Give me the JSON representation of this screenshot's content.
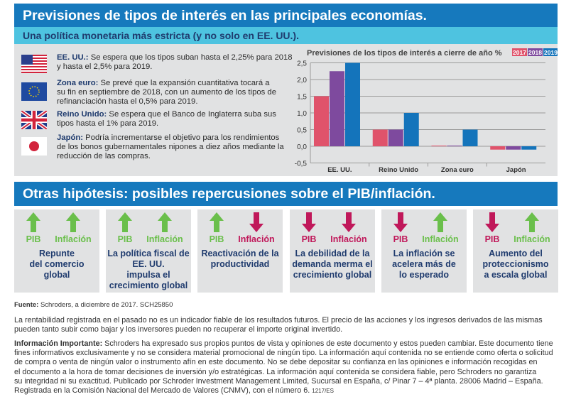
{
  "header": {
    "title": "Previsiones de tipos de interés en las principales economías.",
    "subtitle": "Una política monetaria más estricta (y no solo en EE. UU.)."
  },
  "regions": [
    {
      "flag": "us-flag-icon",
      "name": "EE. UU.:",
      "lines": [
        " Se espera que los tipos suban hasta el 2,25% para 2018",
        "y hasta el 2,5% para 2019."
      ]
    },
    {
      "flag": "eu-flag-icon",
      "name": "Zona euro:",
      "lines": [
        " Se prevé que la expansión cuantitativa tocará a",
        "su fin en septiembre de 2018, con un aumento de los tipos de",
        "refinanciación hasta el 0,5% para 2019."
      ]
    },
    {
      "flag": "uk-flag-icon",
      "name": "Reino Unido:",
      "lines": [
        " Se espera que el Banco de Inglaterra suba sus",
        "tipos hasta el 1% para 2019."
      ]
    },
    {
      "flag": "japan-flag-icon",
      "name": "Japón:",
      "lines": [
        " Podría incrementarse el objetivo para los rendimientos",
        "de los bonos gubernamentales nipones a diez años mediante la",
        "reducción de las compras."
      ]
    }
  ],
  "chart_data": {
    "type": "bar",
    "title": "Previsiones de los tipos de interés a cierre de año %",
    "categories": [
      "EE. UU.",
      "Reino Unido",
      "Zona euro",
      "Japón"
    ],
    "series": [
      {
        "name": "2017",
        "color": "#e0536b",
        "values": [
          1.5,
          0.5,
          0.02,
          -0.1
        ]
      },
      {
        "name": "2018",
        "color": "#7e4a9e",
        "values": [
          2.25,
          0.5,
          0.02,
          -0.1
        ]
      },
      {
        "name": "2019",
        "color": "#1474bb",
        "values": [
          2.5,
          1.0,
          0.5,
          -0.1
        ]
      }
    ],
    "yticks": [
      "2,5",
      "2,0",
      "1,5",
      "1,0",
      "0,5",
      "0,0",
      "-0,5"
    ],
    "ytick_values": [
      2.5,
      2.0,
      1.5,
      1.0,
      0.5,
      0.0,
      -0.5
    ],
    "ylim": [
      -0.5,
      2.5
    ],
    "grid": true,
    "legend": "top-right"
  },
  "scenarios_title": "Otras hipótesis: posibles repercusiones sobre el PIB/inflación.",
  "colors": {
    "up": "#6abf4b",
    "down": "#c0185a"
  },
  "scenarios": [
    {
      "pib": "up",
      "inf": "up",
      "pib_label": "PIB",
      "inf_label": "Inflación",
      "desc": [
        "Repunte",
        "del comercio",
        "global"
      ]
    },
    {
      "pib": "up",
      "inf": "up",
      "pib_label": "PIB",
      "inf_label": "Inflación",
      "desc": [
        "La política fiscal de",
        "EE. UU.",
        "impulsa el",
        "crecimiento global"
      ]
    },
    {
      "pib": "up",
      "inf": "down",
      "pib_label": "PIB",
      "inf_label": "Inflación",
      "desc": [
        "Reactivación de la",
        "productividad"
      ]
    },
    {
      "pib": "down",
      "inf": "down",
      "pib_label": "PIB",
      "inf_label": "Inflación",
      "desc": [
        "La debilidad de la",
        "demanda merma el",
        "crecimiento global"
      ]
    },
    {
      "pib": "down",
      "inf": "up",
      "pib_label": "PIB",
      "inf_label": "Inflación",
      "desc": [
        "La inflación se",
        "acelera más de",
        "lo esperado"
      ]
    },
    {
      "pib": "down",
      "inf": "up",
      "pib_label": "PIB",
      "inf_label": "Inflación",
      "desc": [
        "Aumento del",
        "proteccionismo",
        "a escala global"
      ]
    }
  ],
  "footer": {
    "source_label": "Fuente:",
    "source_text": " Schroders, a diciembre de 2017. SCH25850",
    "disclaimer": [
      "La rentabilidad registrada en el pasado no es un indicador fiable de los resultados futuros. El precio de las acciones y los ingresos derivados de las mismas",
      "pueden tanto subir como bajar y los inversores pueden no recuperar el importe original invertido."
    ],
    "important_label": "Información Importante:",
    "important": [
      " Schroders ha expresado sus propios puntos de vista y opiniones de este documento y estos pueden cambiar. Este documento tiene",
      "fines informativos exclusivamente y no se considera material promocional de ningún tipo. La información aquí contenida no se entiende como oferta o solicitud",
      "de compra o venta de ningún valor o instrumento afín en este documento. No se debe depositar su confianza en las opiniones e información recogidas en",
      "el documento a la hora de tomar decisiones de inversión y/o estratégicas. La información aquí contenida se considera fiable, pero Schroders no garantiza",
      "su integridad ni su exactitud. Publicado por Schroder Investment Management Limited, Sucursal en España, c/ Pinar 7 – 4ª planta. 28006 Madrid – España.",
      "Registrada en la Comisión Nacional del Mercado de Valores (CNMV), con el número 6.  "
    ],
    "code": "1217/ES"
  }
}
